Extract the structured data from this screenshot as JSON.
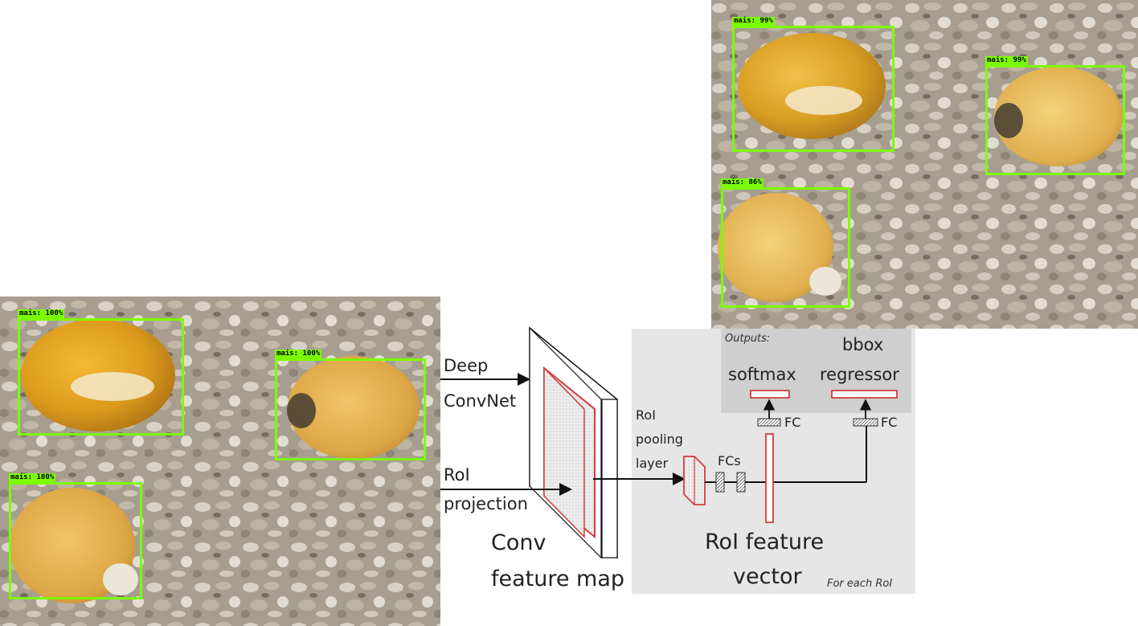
{
  "detections_top": [
    {
      "label": "mais: 99%"
    },
    {
      "label": "mais: 99%"
    },
    {
      "label": "mais: 86%"
    }
  ],
  "detections_bottom": [
    {
      "label": "mais: 100%"
    },
    {
      "label": "mais: 100%"
    },
    {
      "label": "mais: 100%"
    }
  ],
  "diagram": {
    "deep_convnet_line1": "Deep",
    "deep_convnet_line2": "ConvNet",
    "roi_projection_line1": "RoI",
    "roi_projection_line2": "projection",
    "conv_feature_map_line1": "Conv",
    "conv_feature_map_line2": "feature map",
    "roi_pooling_line1": "RoI",
    "roi_pooling_line2": "pooling",
    "roi_pooling_line3": "layer",
    "fcs": "FCs",
    "outputs": "Outputs:",
    "softmax": "softmax",
    "bbox_line1": "bbox",
    "bbox_line2": "regressor",
    "fc_left": "FC",
    "fc_right": "FC",
    "roi_feature_line1": "RoI feature",
    "roi_feature_line2": "vector",
    "for_each_roi": "For each RoI"
  },
  "colors": {
    "detection_box": "#7cfc00",
    "feature_red": "#d23c3c",
    "panel_bg": "#e6e6e6",
    "outputs_bg": "#cfcfcf"
  }
}
